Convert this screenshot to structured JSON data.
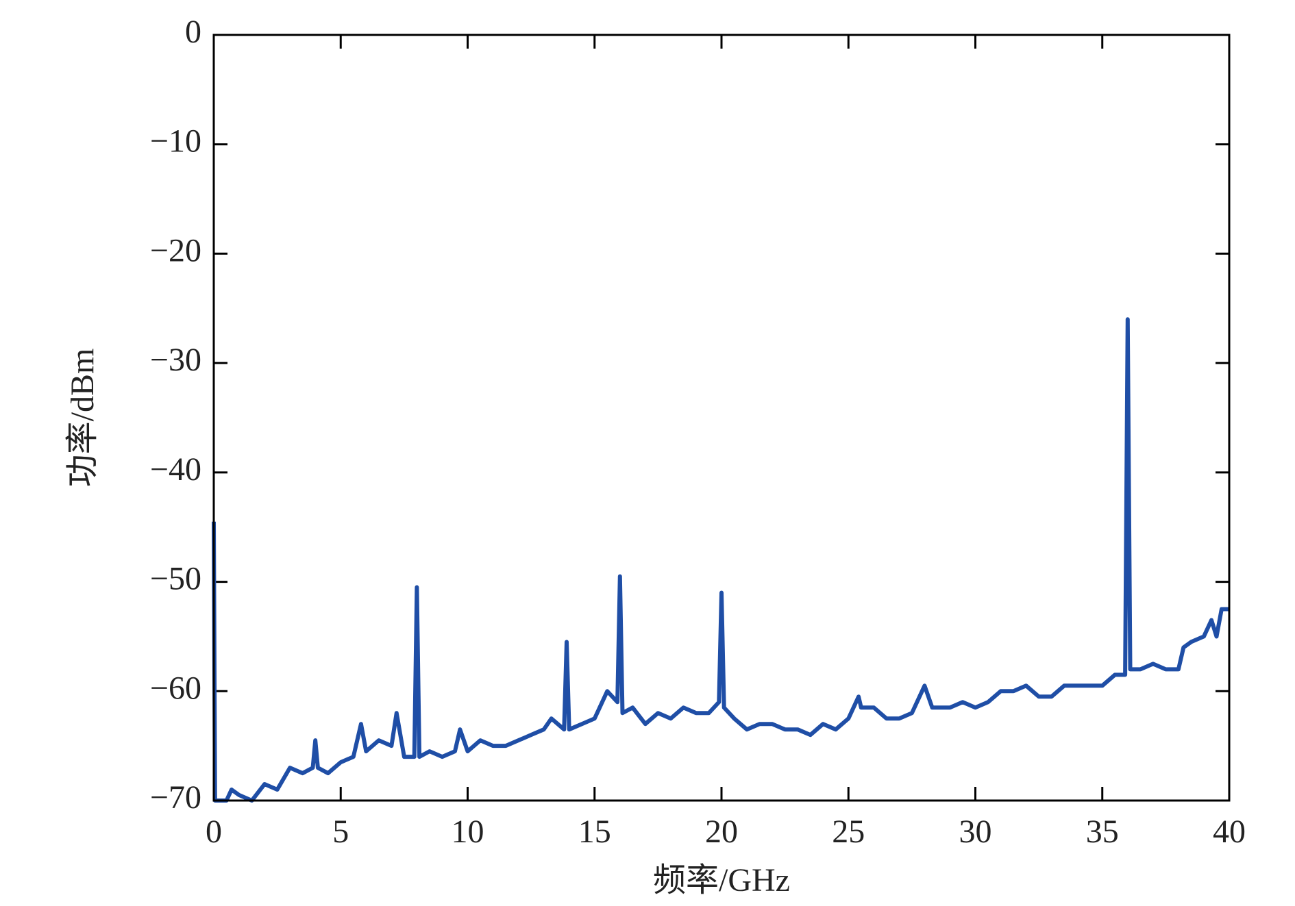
{
  "chart_data": {
    "type": "line",
    "xlabel": "频率/GHz",
    "ylabel": "功率/dBm",
    "xlim": [
      0,
      40
    ],
    "ylim": [
      -70,
      0
    ],
    "xticks": [
      0,
      5,
      10,
      15,
      20,
      25,
      30,
      35,
      40
    ],
    "yticks": [
      0,
      {
        "value": -10,
        "label": "−10"
      },
      {
        "value": -20,
        "label": "−20"
      },
      {
        "value": -30,
        "label": "−30"
      },
      {
        "value": -40,
        "label": "−40"
      },
      {
        "value": -50,
        "label": "−50"
      },
      {
        "value": -60,
        "label": "−60"
      },
      {
        "value": -70,
        "label": "−70"
      }
    ],
    "grid": false,
    "series": [
      {
        "color": "#1f4ea6",
        "x": [
          0,
          0.05,
          0.5,
          0.7,
          1,
          1.5,
          2,
          2.5,
          3,
          3.5,
          3.9,
          4,
          4.1,
          4.5,
          5,
          5.5,
          5.8,
          6,
          6.5,
          7,
          7.2,
          7.5,
          7.9,
          8,
          8.1,
          8.5,
          9,
          9.5,
          9.7,
          10,
          10.5,
          11,
          11.5,
          12,
          12.5,
          13,
          13.3,
          13.8,
          13.9,
          14,
          14.5,
          15,
          15.5,
          15.9,
          16,
          16.1,
          16.5,
          17,
          17.5,
          18,
          18.5,
          19,
          19.5,
          19.9,
          20,
          20.1,
          20.5,
          21,
          21.5,
          22,
          22.5,
          23,
          23.5,
          24,
          24.5,
          25,
          25.4,
          25.5,
          26,
          26.5,
          27,
          27.5,
          28,
          28.3,
          29,
          29.5,
          30,
          30.5,
          31,
          31.5,
          32,
          32.5,
          33,
          33.5,
          34,
          34.5,
          35,
          35.5,
          35.9,
          36,
          36.1,
          36.5,
          37,
          37.5,
          38,
          38.2,
          38.5,
          39,
          39.3,
          39.5,
          39.7,
          40
        ],
        "values": [
          -44.5,
          -70,
          -70,
          -69,
          -69.5,
          -70,
          -68.5,
          -69,
          -67,
          -67.5,
          -67,
          -64.5,
          -67,
          -67.5,
          -66.5,
          -66,
          -63,
          -65.5,
          -64.5,
          -65,
          -62,
          -66,
          -66,
          -50.5,
          -66,
          -65.5,
          -66,
          -65.5,
          -63.5,
          -65.5,
          -64.5,
          -65,
          -65,
          -64.5,
          -64,
          -63.5,
          -62.5,
          -63.5,
          -55.5,
          -63.5,
          -63,
          -62.5,
          -60,
          -61,
          -49.5,
          -62,
          -61.5,
          -63,
          -62,
          -62.5,
          -61.5,
          -62,
          -62,
          -61,
          -51,
          -61.5,
          -62.5,
          -63.5,
          -63,
          -63,
          -63.5,
          -63.5,
          -64,
          -63,
          -63.5,
          -62.5,
          -60.5,
          -61.5,
          -61.5,
          -62.5,
          -62.5,
          -62,
          -59.5,
          -61.5,
          -61.5,
          -61,
          -61.5,
          -61,
          -60,
          -60,
          -59.5,
          -60.5,
          -60.5,
          -59.5,
          -59.5,
          -59.5,
          -59.5,
          -58.5,
          -58.5,
          -26,
          -58,
          -58,
          -57.5,
          -58,
          -58,
          -56,
          -55.5,
          -55,
          -53.5,
          -55,
          -52.5,
          -52.5
        ]
      }
    ]
  }
}
